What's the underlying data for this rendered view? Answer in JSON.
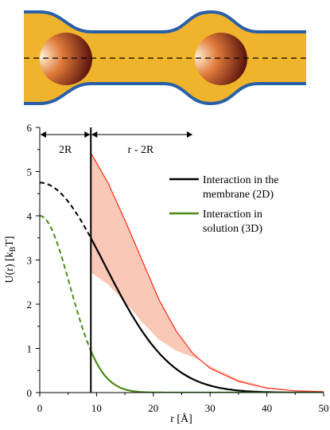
{
  "colors": {
    "membrane_fill": "#f0b42c",
    "membrane_edge": "#2a5fa8",
    "line_2d": "#000000",
    "line_3d": "#4a8a18",
    "band_fill": "#f9c8b6",
    "band_edge": "#ff2a1a",
    "sphere_light": "#fff2d8",
    "sphere_mid": "#e07a3a",
    "sphere_dark": "#4a0808"
  },
  "chart_data": {
    "type": "line",
    "xlabel": "r [Å]",
    "ylabel_parts": {
      "main": "U(r) [k",
      "sub": "B",
      "tail": "T]"
    },
    "xlim": [
      0,
      50
    ],
    "ylim": [
      0,
      6
    ],
    "xticks": [
      "0",
      "10",
      "20",
      "30",
      "40",
      "50"
    ],
    "yticks": [
      "0",
      "1",
      "2",
      "3",
      "4",
      "5",
      "6"
    ],
    "cutoff_x": 9,
    "annotations": {
      "left": "2R",
      "right": "r - 2R"
    },
    "legend": {
      "placement": "right",
      "entries": [
        {
          "key": "2d",
          "lines": [
            "Interaction in the",
            "membrane (2D)"
          ]
        },
        {
          "key": "3d",
          "lines": [
            "Interaction in",
            "solution (3D)"
          ]
        }
      ]
    },
    "series": [
      {
        "key": "2d",
        "amplitude": 4.75,
        "sigma": 11.5
      },
      {
        "key": "3d",
        "amplitude": 4.0,
        "sigma": 5.3
      }
    ],
    "band": {
      "upper": [
        [
          9,
          5.42
        ],
        [
          12,
          4.75
        ],
        [
          15,
          3.9
        ],
        [
          18,
          3.0
        ],
        [
          21,
          2.1
        ],
        [
          24,
          1.4
        ],
        [
          27,
          0.88
        ],
        [
          30,
          0.55
        ],
        [
          35,
          0.25
        ],
        [
          40,
          0.1
        ],
        [
          45,
          0.04
        ],
        [
          50,
          0.02
        ]
      ],
      "lower": [
        [
          9,
          2.72
        ],
        [
          12,
          2.45
        ],
        [
          15,
          2.05
        ],
        [
          18,
          1.6
        ],
        [
          21,
          1.2
        ],
        [
          24,
          0.95
        ],
        [
          27,
          0.8
        ],
        [
          30,
          0.6
        ],
        [
          35,
          0.3
        ],
        [
          40,
          0.12
        ],
        [
          45,
          0.05
        ],
        [
          50,
          0.02
        ]
      ]
    }
  }
}
